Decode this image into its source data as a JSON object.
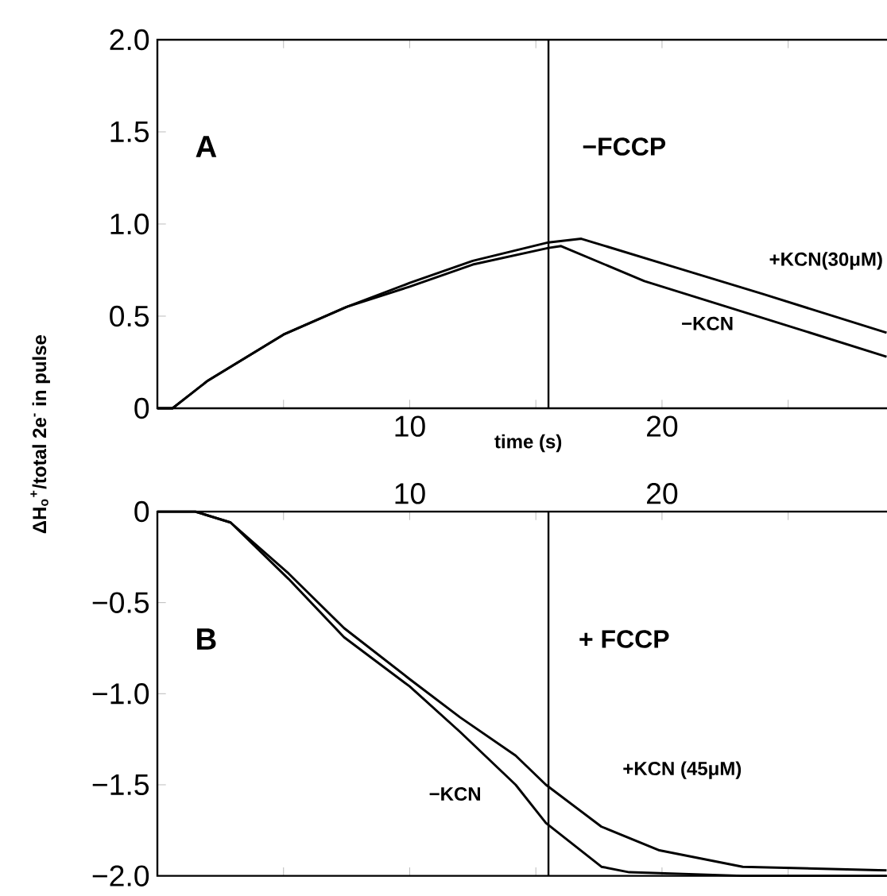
{
  "chart_data": [
    {
      "type": "line",
      "xlabel": "time (s)",
      "ylabel": "ΔH$_{o}$$^{+}$/total  2e$^{-}$ in pulse",
      "xlim": [
        0,
        29.4
      ],
      "ylim": [
        0,
        2
      ],
      "xticks": [
        {
          "value": 5,
          "label": null
        },
        10,
        {
          "value": 15,
          "label": null
        },
        20,
        {
          "value": 25,
          "label": null
        }
      ],
      "yticks": [
        0,
        {
          "value": 0.5,
          "label": "0.5"
        },
        {
          "value": 1,
          "label": "1.0"
        },
        {
          "value": 1.5,
          "label": "1.5"
        },
        {
          "value": 2,
          "label": "2.0"
        }
      ],
      "annotations": [
        "A",
        "−FCCP"
      ],
      "ref_lines": [
        {
          "axis": "x",
          "value": 15.5
        }
      ],
      "marker": "none",
      "line_style": "solid",
      "series": [
        {
          "name": "+KCN(30μM)",
          "color": "#000000",
          "x": [
            0,
            0.6,
            2,
            5,
            7.5,
            10,
            12.5,
            15.5,
            16.8,
            20.4,
            24,
            28.9
          ],
          "values": [
            0,
            0,
            0.15,
            0.4,
            0.55,
            0.68,
            0.8,
            0.9,
            0.92,
            0.77,
            0.62,
            0.41
          ]
        },
        {
          "name": "−KCN",
          "color": "#000000",
          "x": [
            0,
            0.6,
            2,
            5,
            7.5,
            10,
            12.5,
            15.5,
            16,
            19.3,
            24,
            28.9
          ],
          "values": [
            0,
            0,
            0.15,
            0.4,
            0.55,
            0.66,
            0.78,
            0.87,
            0.88,
            0.69,
            0.49,
            0.28
          ]
        }
      ]
    },
    {
      "type": "line",
      "xlim": [
        0,
        29.4
      ],
      "ylim": [
        -2,
        0
      ],
      "xticks": [
        {
          "value": 5,
          "label": null
        },
        10,
        {
          "value": 15,
          "label": null
        },
        20,
        {
          "value": 25,
          "label": null
        }
      ],
      "yticks": [
        {
          "value": -2,
          "label": "−2.0"
        },
        {
          "value": -1.5,
          "label": "−1.5"
        },
        {
          "value": -1,
          "label": "−1.0"
        },
        {
          "value": -0.5,
          "label": "−0.5"
        },
        0
      ],
      "annotations": [
        "B",
        "+ FCCP"
      ],
      "ref_lines": [
        {
          "axis": "x",
          "value": 15.5
        }
      ],
      "marker": "none",
      "line_style": "solid",
      "series": [
        {
          "name": "+KCN (45μM)",
          "color": "#000000",
          "x": [
            0,
            1.5,
            2.9,
            5.2,
            7.4,
            10,
            12,
            14.2,
            15.4,
            17.6,
            19.9,
            23.2,
            28.9
          ],
          "values": [
            0,
            0,
            -0.06,
            -0.34,
            -0.64,
            -0.92,
            -1.13,
            -1.34,
            -1.5,
            -1.73,
            -1.86,
            -1.95,
            -1.97
          ]
        },
        {
          "name": "−KCN",
          "color": "#000000",
          "x": [
            0,
            1.5,
            2.9,
            5.2,
            7.4,
            10,
            12,
            14.2,
            15.4,
            16.5,
            17.6,
            18.7,
            23.2,
            28.9
          ],
          "values": [
            0,
            0,
            -0.06,
            -0.37,
            -0.69,
            -0.96,
            -1.21,
            -1.5,
            -1.71,
            -1.83,
            -1.95,
            -1.98,
            -2,
            -2
          ]
        }
      ]
    }
  ]
}
